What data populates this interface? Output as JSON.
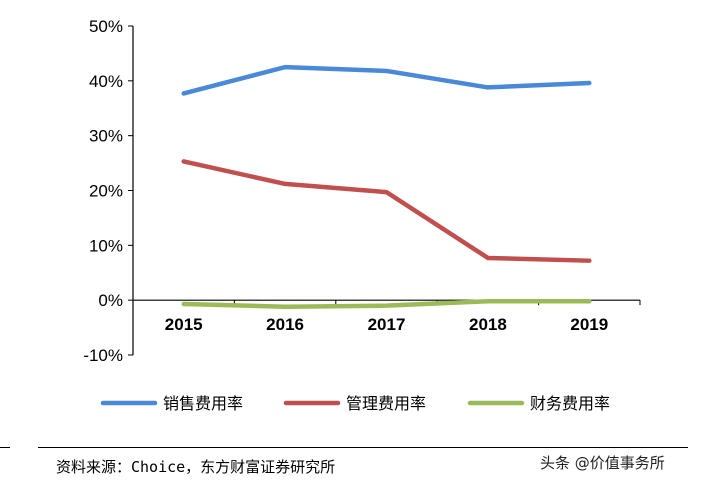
{
  "chart_data": {
    "type": "line",
    "categories": [
      "2015",
      "2016",
      "2017",
      "2018",
      "2019"
    ],
    "y_tick_labels": [
      "50%",
      "40%",
      "30%",
      "20%",
      "10%",
      "0%",
      "-10%"
    ],
    "ylim": [
      -10,
      50
    ],
    "y_unit": "%",
    "grid": false,
    "legend_position": "bottom",
    "series": [
      {
        "name": "销售费用率",
        "color": "#4a89d8",
        "values": [
          37.7,
          42.5,
          41.8,
          38.8,
          39.6
        ]
      },
      {
        "name": "管理费用率",
        "color": "#c0504d",
        "values": [
          25.3,
          21.2,
          19.7,
          7.7,
          7.2
        ]
      },
      {
        "name": "财务费用率",
        "color": "#9bbb59",
        "values": [
          -0.7,
          -1.2,
          -1.0,
          -0.2,
          -0.2
        ]
      }
    ]
  },
  "footer": {
    "source": "资料来源：Choice，东方财富证券研究所",
    "watermark": "头条 @价值事务所"
  }
}
